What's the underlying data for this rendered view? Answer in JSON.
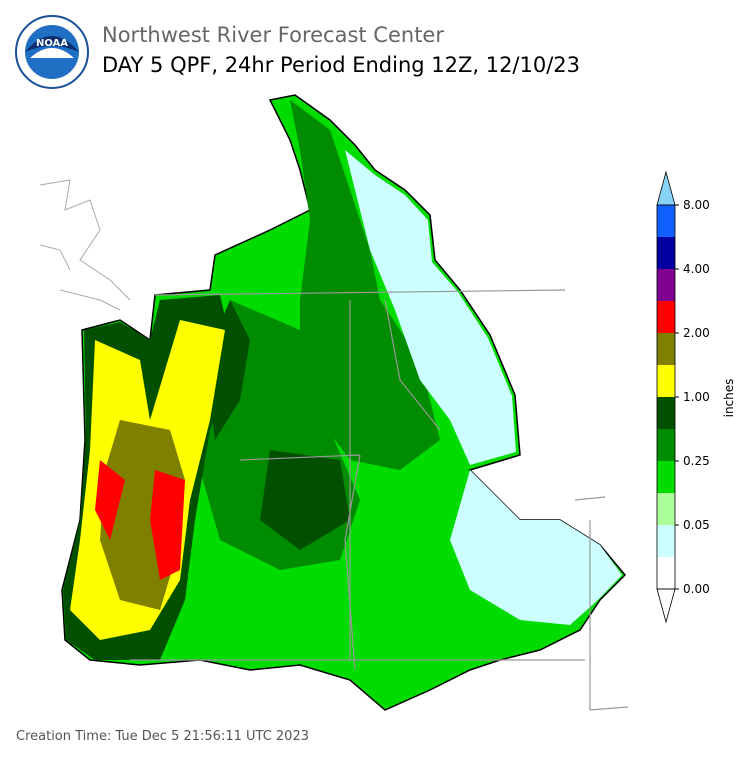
{
  "header": {
    "title": "Northwest River Forecast Center",
    "subtitle": "DAY 5 QPF, 24hr Period Ending 12Z, 12/10/23"
  },
  "logo": {
    "text": "NOAA"
  },
  "legend": {
    "unit": "inches",
    "ticks": [
      "8.00",
      "4.00",
      "2.00",
      "1.00",
      "0.25",
      "0.05",
      "0.00"
    ],
    "colors": [
      "#87d3f8",
      "#1060ff",
      "#0000a0",
      "#800090",
      "#ff0000",
      "#808000",
      "#ffff00",
      "#005000",
      "#008c00",
      "#00dc00",
      "#aaff99",
      "#ccffff",
      "#ffffff",
      "#ffffff"
    ]
  },
  "footer": {
    "creation_time": "Creation Time: Tue Dec 5 21:56:11 UTC 2023"
  }
}
